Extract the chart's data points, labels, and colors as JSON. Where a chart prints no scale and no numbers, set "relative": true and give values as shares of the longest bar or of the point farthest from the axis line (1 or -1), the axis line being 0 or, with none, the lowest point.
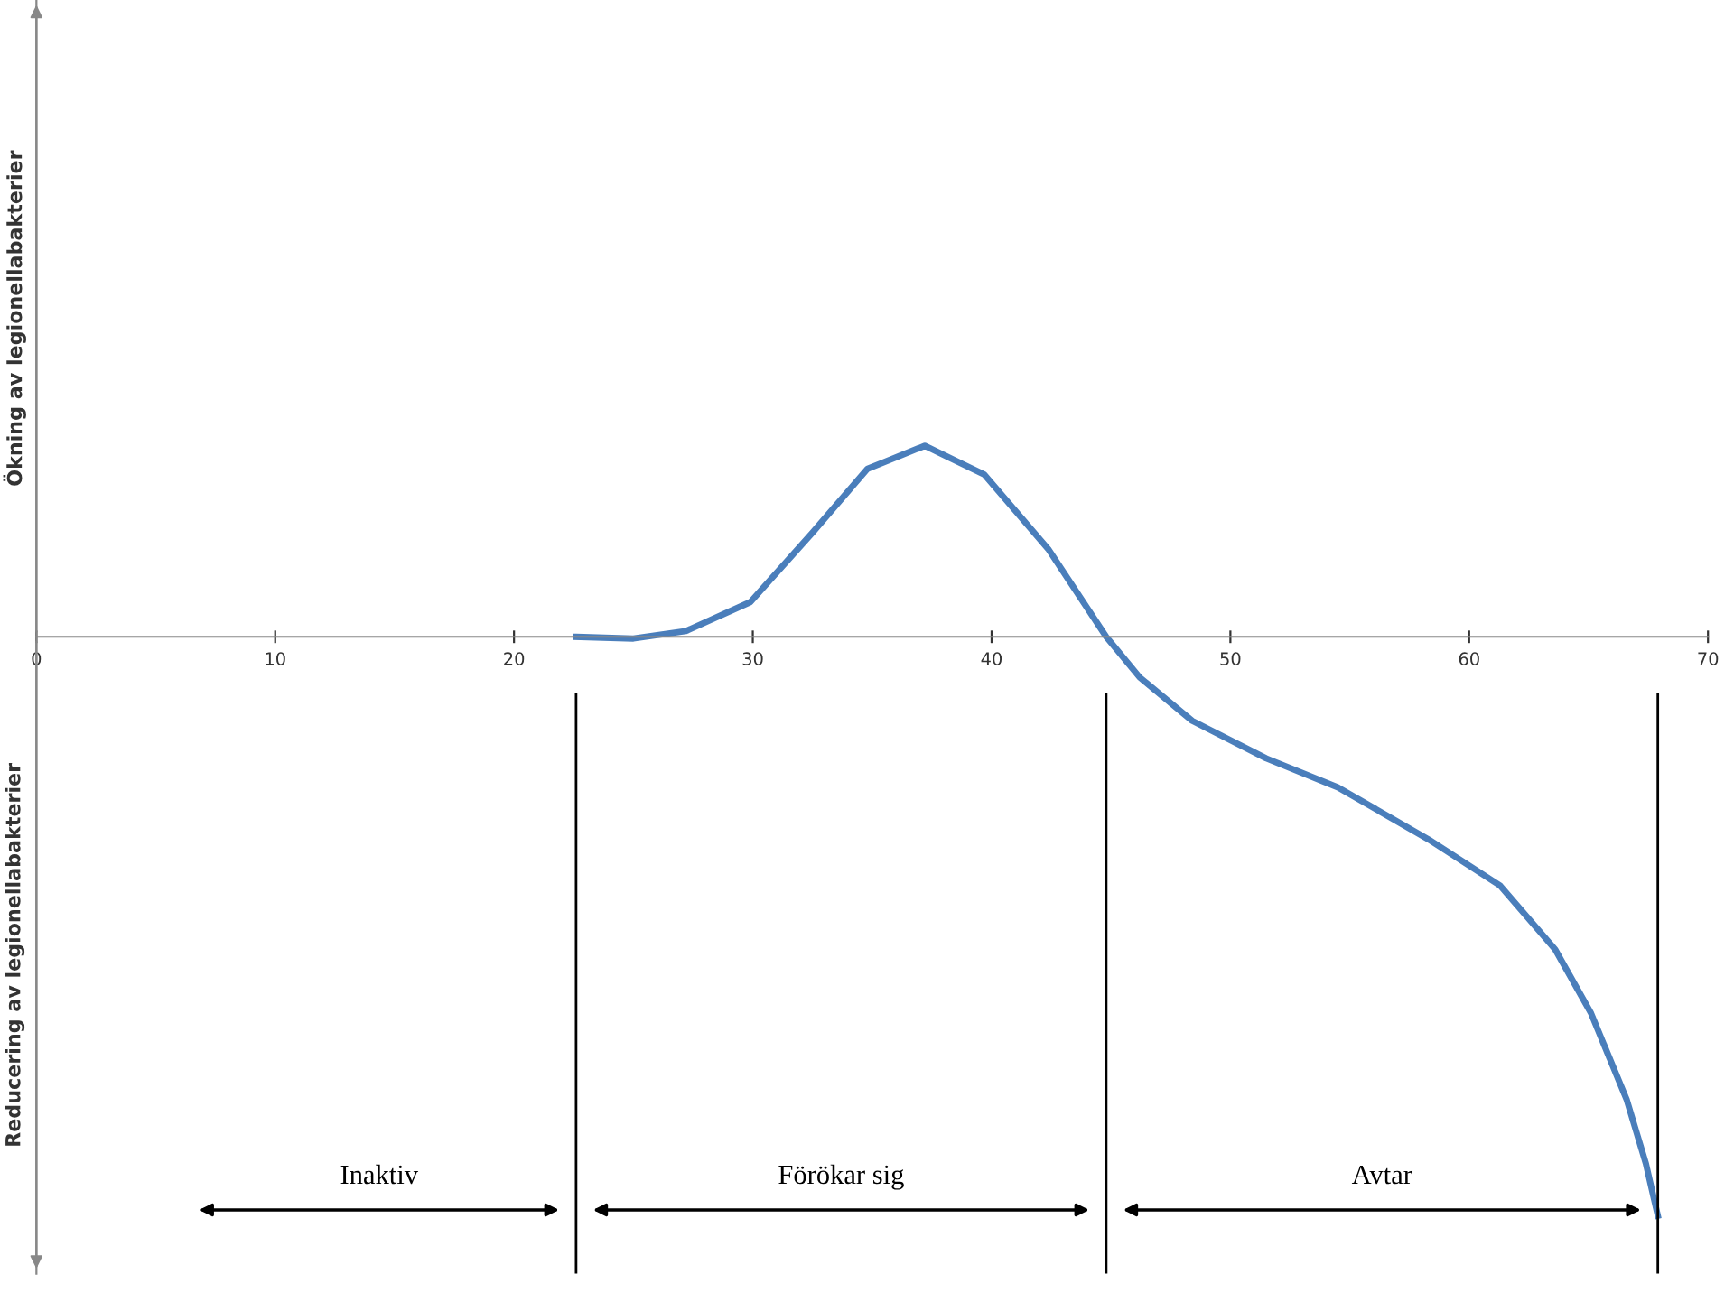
{
  "chart_data": {
    "type": "line",
    "relative": true,
    "ylabel": "Ökning av legionellabakterier",
    "annotations": [
      "Reducering av legionellabakterier",
      "Inaktiv",
      "Förökar sig",
      "Avtar"
    ],
    "xlim": [
      0,
      70
    ],
    "xticks": [
      0,
      10,
      20,
      30,
      40,
      50,
      60,
      70
    ],
    "grid": false,
    "legend": false,
    "series": [
      {
        "color": "#4a7ebb",
        "x": [
          22.6,
          25,
          27.2,
          29.9,
          32.5,
          34.8,
          37.2,
          39.7,
          42.4,
          44.8,
          46.2,
          48.4,
          51.5,
          54.5,
          58.3,
          61.3,
          63.6,
          65.1,
          66.6,
          67.4,
          67.9
        ],
        "values": [
          0,
          -0.003,
          0.01,
          0.06,
          0.18,
          0.29,
          0.33,
          0.28,
          0.15,
          0,
          -0.07,
          -0.145,
          -0.21,
          -0.26,
          -0.35,
          -0.43,
          -0.54,
          -0.65,
          -0.8,
          -0.91,
          -1
        ]
      }
    ],
    "ref_lines": [
      {
        "axis": "x",
        "value": 22.6,
        "color": "#000000"
      },
      {
        "axis": "x",
        "value": 44.8,
        "color": "#000000"
      },
      {
        "axis": "x",
        "value": 67.9,
        "color": "#000000"
      }
    ]
  }
}
